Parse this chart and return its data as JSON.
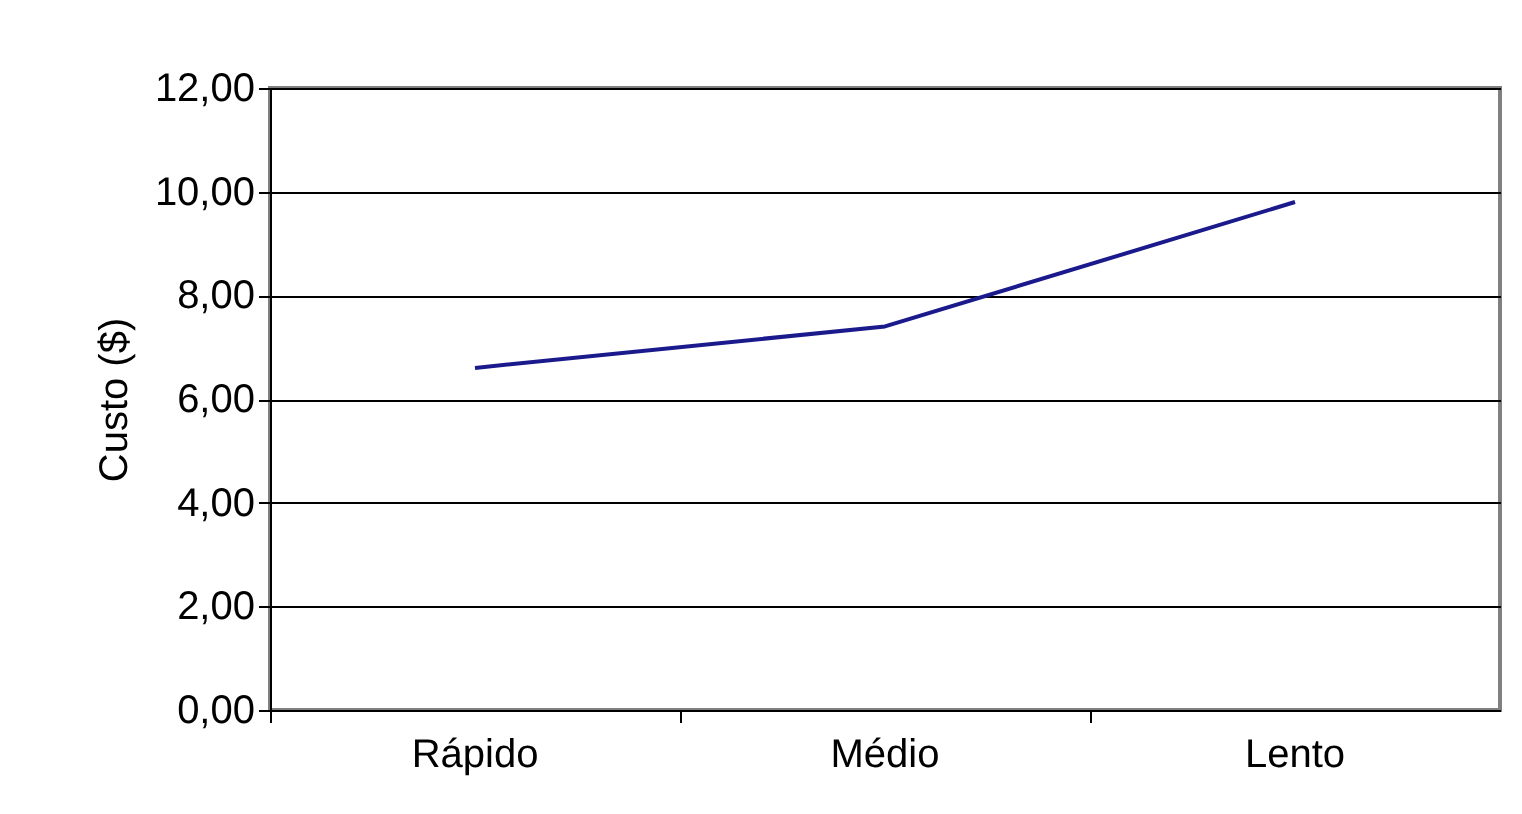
{
  "chart_data": {
    "type": "line",
    "ylabel": "Custo ($)",
    "categories": [
      "Rápido",
      "Médio",
      "Lento"
    ],
    "series": [
      {
        "color": "#1a1a8c",
        "values": [
          6.6,
          7.4,
          9.8
        ]
      }
    ],
    "ylim": [
      0,
      12
    ],
    "yticks": [
      {
        "value": 0,
        "label": "0,00"
      },
      {
        "value": 2,
        "label": "2,00"
      },
      {
        "value": 4,
        "label": "4,00"
      },
      {
        "value": 6,
        "label": "6,00"
      },
      {
        "value": 8,
        "label": "8,00"
      },
      {
        "value": 10,
        "label": "10,00"
      },
      {
        "value": 12,
        "label": "12,00"
      }
    ],
    "grid": "y",
    "legend": false
  }
}
